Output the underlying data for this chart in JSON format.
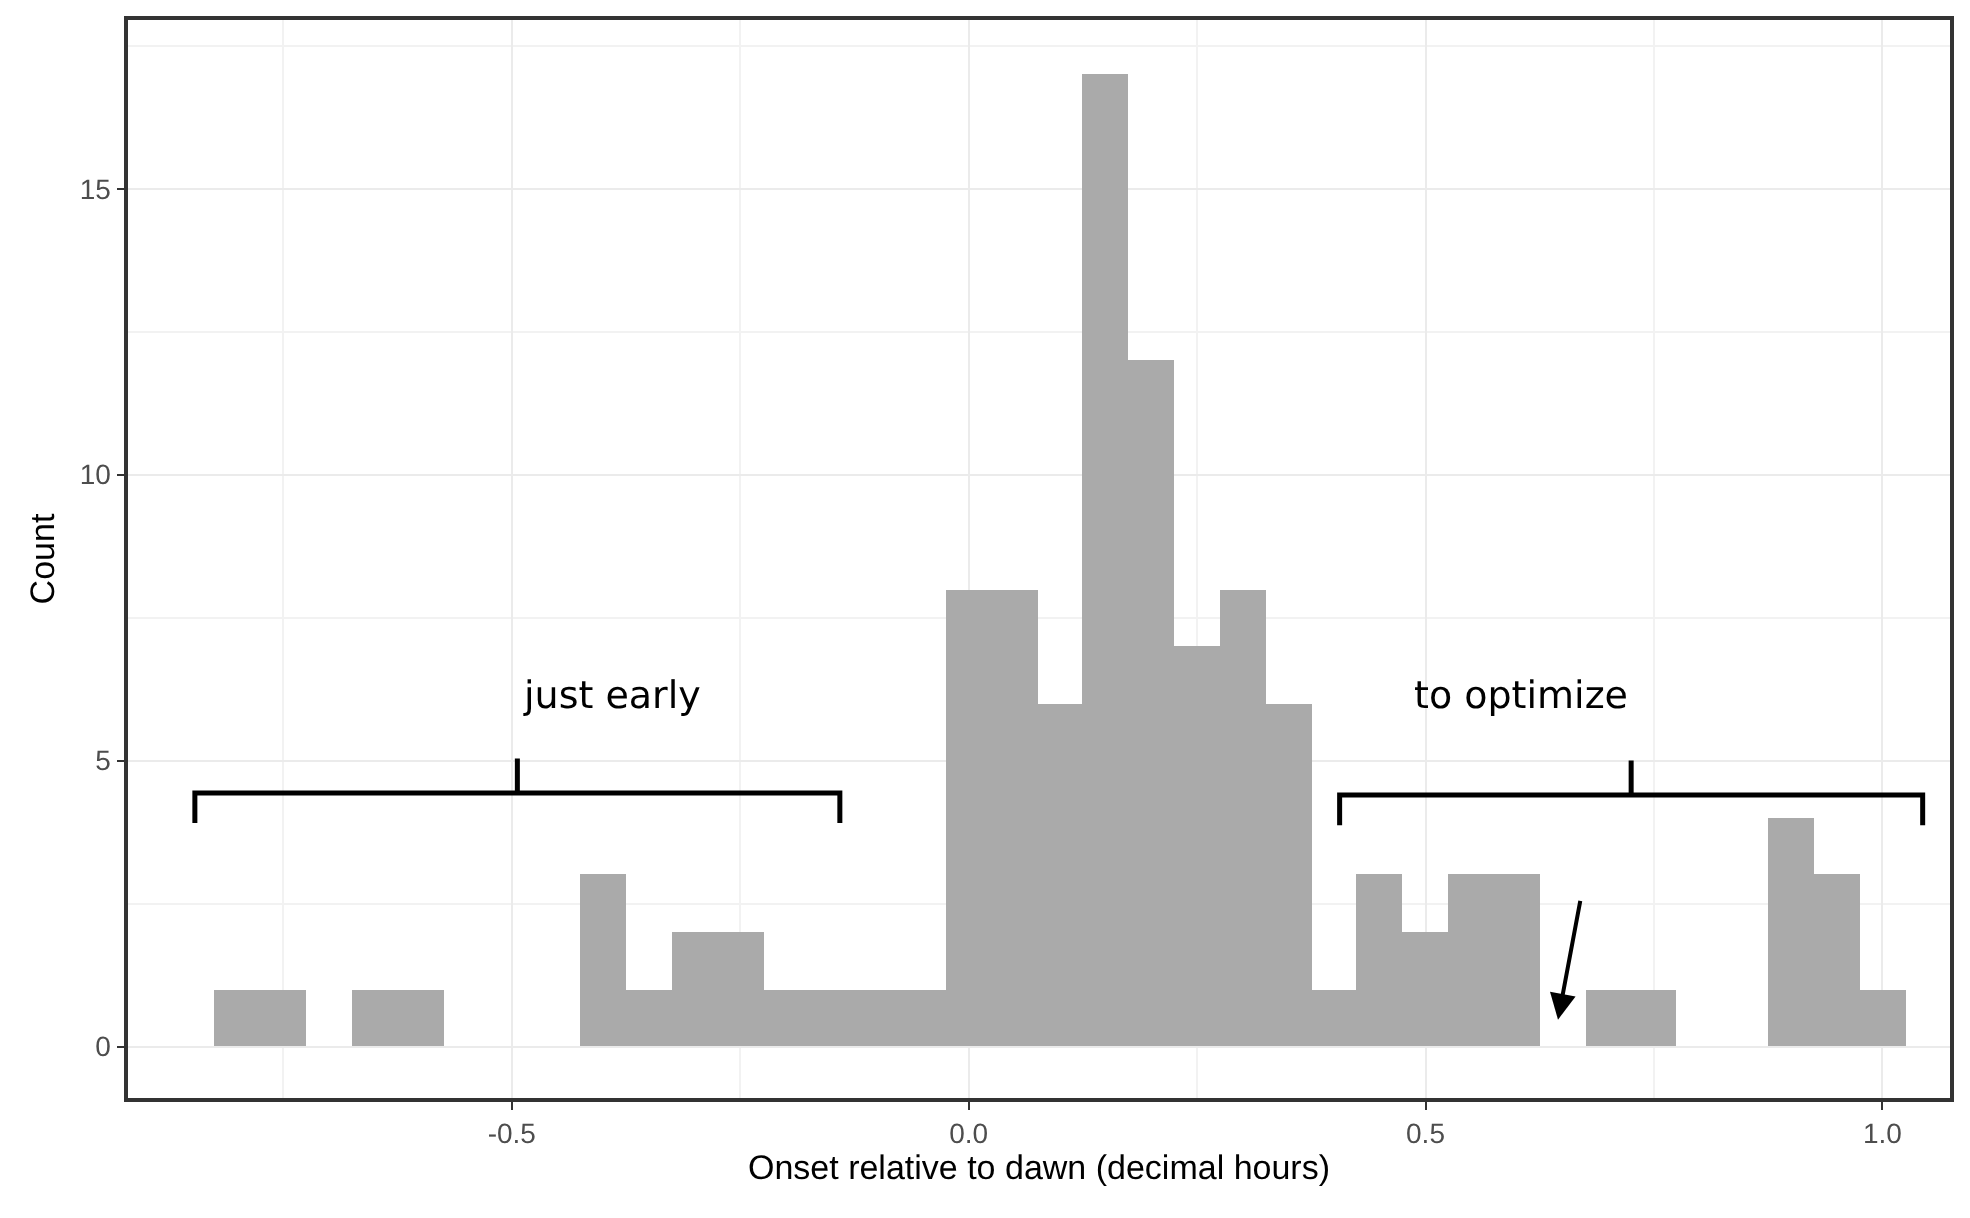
{
  "chart_data": {
    "type": "histogram",
    "xlabel": "Onset relative to dawn (decimal hours)",
    "ylabel": "Count",
    "bins": [
      -0.825,
      -0.775,
      -0.725,
      -0.675,
      -0.625,
      -0.575,
      -0.525,
      -0.475,
      -0.425,
      -0.375,
      -0.325,
      -0.275,
      -0.225,
      -0.175,
      -0.125,
      -0.075,
      -0.025,
      0.025,
      0.075,
      0.125,
      0.175,
      0.225,
      0.275,
      0.325,
      0.375,
      0.425,
      0.475,
      0.525,
      0.575,
      0.625,
      0.675,
      0.725,
      0.775,
      0.825,
      0.875,
      0.925,
      0.975,
      1.025
    ],
    "values": [
      1,
      1,
      0,
      1,
      1,
      0,
      0,
      0,
      3,
      1,
      2,
      2,
      1,
      1,
      1,
      1,
      8,
      8,
      6,
      17,
      12,
      7,
      8,
      6,
      1,
      3,
      2,
      3,
      3,
      0,
      1,
      1,
      0,
      0,
      4,
      3,
      1
    ],
    "color": "#aaaaaa",
    "xlim": [
      -0.92,
      1.074
    ],
    "ylim": [
      -0.9,
      17.95
    ],
    "xticks": [
      -0.5,
      {
        "value": 0.0,
        "label": "0.0"
      },
      0.5,
      {
        "value": 1.0,
        "label": "1.0"
      }
    ],
    "yticks": [
      0,
      5,
      10,
      15
    ],
    "grid": true,
    "annotations": [
      "just early",
      "to optimize"
    ]
  }
}
